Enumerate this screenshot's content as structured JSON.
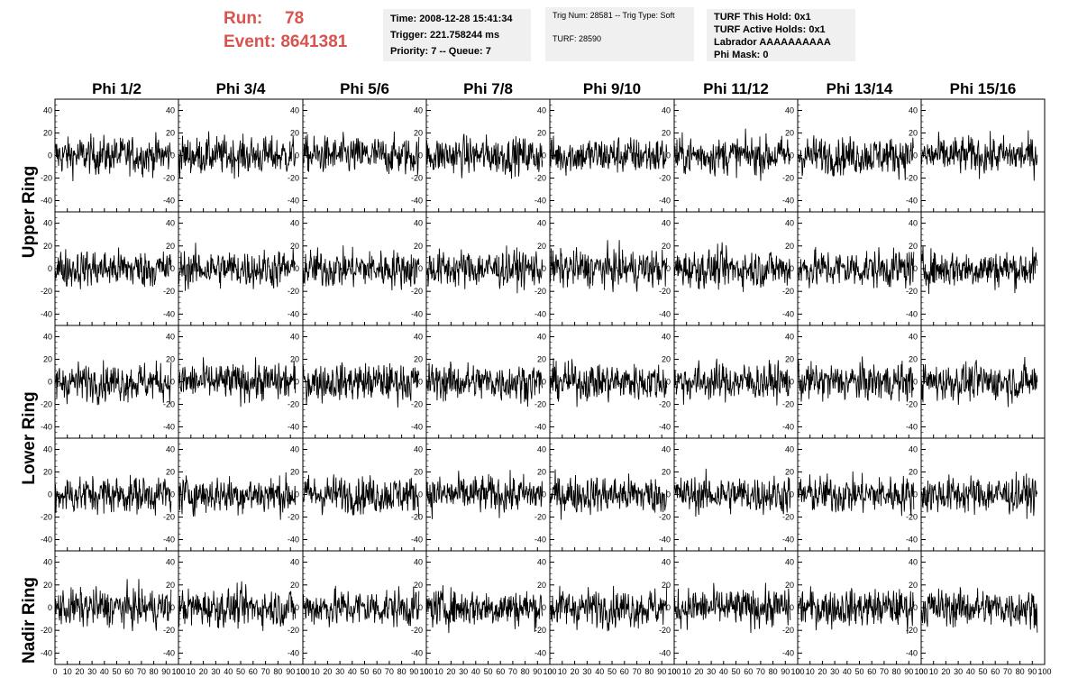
{
  "header": {
    "run_label": "Run:",
    "run_value": "78",
    "event_label": "Event:",
    "event_value": "8641381",
    "time": "Time: 2008-12-28 15:41:34",
    "trigger": "Trigger: 221.758244 ms",
    "priority": "Priority: 7 -- Queue: 7",
    "trig_num": "Trig Num: 28581 -- Trig Type: Soft",
    "turf": "TURF: 28590",
    "turf_this_hold": "TURF This Hold: 0x1",
    "turf_active_holds": "TURF Active Holds: 0x1",
    "labrador": "Labrador AAAAAAAAAA",
    "phi_mask": "Phi Mask: 0"
  },
  "chart_data": {
    "type": "line",
    "columns": [
      "Phi 1/2",
      "Phi 3/4",
      "Phi 5/6",
      "Phi 7/8",
      "Phi 9/10",
      "Phi 11/12",
      "Phi 13/14",
      "Phi 15/16"
    ],
    "row_labels": [
      "Upper Ring",
      "Lower Ring",
      "Nadir Ring"
    ],
    "ylim": [
      -50,
      50
    ],
    "y_ticks": [
      -40,
      -20,
      0,
      20,
      40
    ],
    "xlim": [
      0,
      100
    ],
    "x_ticks": [
      0,
      10,
      20,
      30,
      40,
      50,
      60,
      70,
      80,
      90,
      100
    ],
    "x_tick_labels": [
      "0",
      "10",
      "20",
      "30",
      "40",
      "50",
      "60",
      "70",
      "80",
      "90",
      "100"
    ],
    "samples_per_trace": 260,
    "trace_range": [
      0,
      94
    ],
    "typical_amplitude": 15,
    "trace_color": "#000000",
    "grid": false
  }
}
